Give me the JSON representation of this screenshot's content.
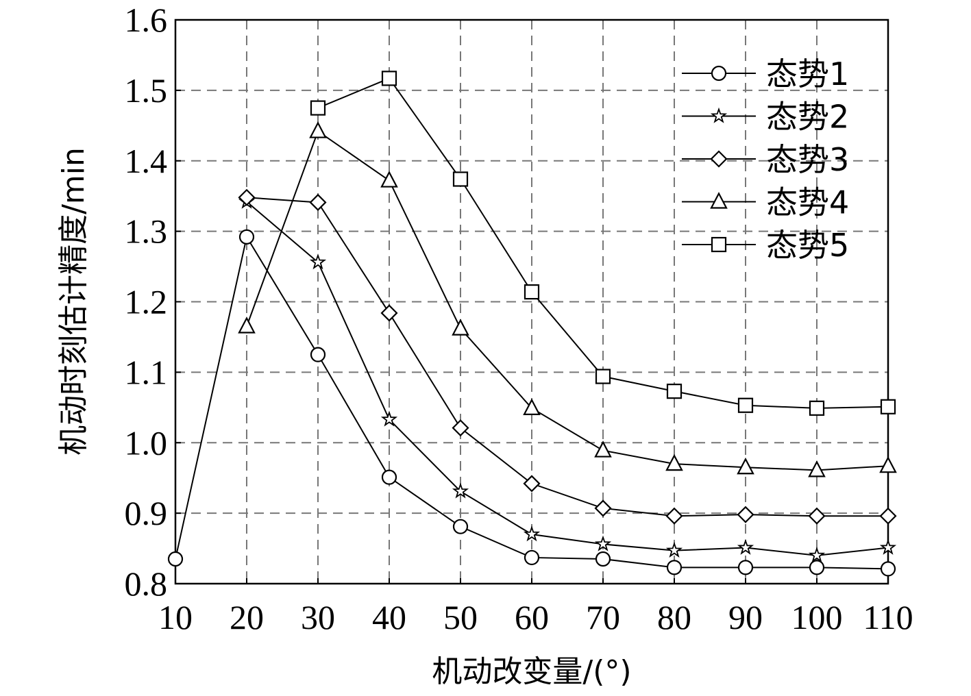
{
  "chart_data": {
    "type": "line",
    "xlabel": "机动改变量/(°)",
    "ylabel": "机动时刻估计精度/min",
    "xlim": [
      10,
      110
    ],
    "ylim": [
      0.8,
      1.6
    ],
    "x_ticks": [
      "10",
      "20",
      "30",
      "40",
      "50",
      "60",
      "70",
      "80",
      "90",
      "100",
      "110"
    ],
    "y_ticks": [
      "0.8",
      "0.9",
      "1.0",
      "1.1",
      "1.2",
      "1.3",
      "1.4",
      "1.5",
      "1.6"
    ],
    "grid": true,
    "legend_position": "top-right",
    "series": [
      {
        "name": "态势1",
        "marker": "circle",
        "x": [
          10,
          20,
          30,
          40,
          50,
          60,
          70,
          80,
          90,
          100,
          110
        ],
        "values": [
          0.835,
          1.292,
          1.125,
          0.951,
          0.881,
          0.837,
          0.835,
          0.823,
          0.823,
          0.823,
          0.821
        ]
      },
      {
        "name": "态势2",
        "marker": "star",
        "x": [
          20,
          30,
          40,
          50,
          60,
          70,
          80,
          90,
          100,
          110
        ],
        "values": [
          1.342,
          1.256,
          1.033,
          0.931,
          0.87,
          0.856,
          0.847,
          0.851,
          0.84,
          0.851
        ]
      },
      {
        "name": "态势3",
        "marker": "diamond",
        "x": [
          20,
          30,
          40,
          50,
          60,
          70,
          80,
          90,
          100,
          110
        ],
        "values": [
          1.348,
          1.341,
          1.184,
          1.021,
          0.942,
          0.907,
          0.896,
          0.898,
          0.896,
          0.896
        ]
      },
      {
        "name": "态势4",
        "marker": "triangle",
        "x": [
          20,
          30,
          40,
          50,
          60,
          70,
          80,
          90,
          100,
          110
        ],
        "values": [
          1.165,
          1.442,
          1.372,
          1.162,
          1.049,
          0.989,
          0.97,
          0.965,
          0.961,
          0.967
        ]
      },
      {
        "name": "态势5",
        "marker": "square",
        "x": [
          30,
          40,
          50,
          60,
          70,
          80,
          90,
          100,
          110
        ],
        "values": [
          1.475,
          1.517,
          1.374,
          1.214,
          1.094,
          1.073,
          1.053,
          1.049,
          1.051
        ]
      }
    ]
  }
}
